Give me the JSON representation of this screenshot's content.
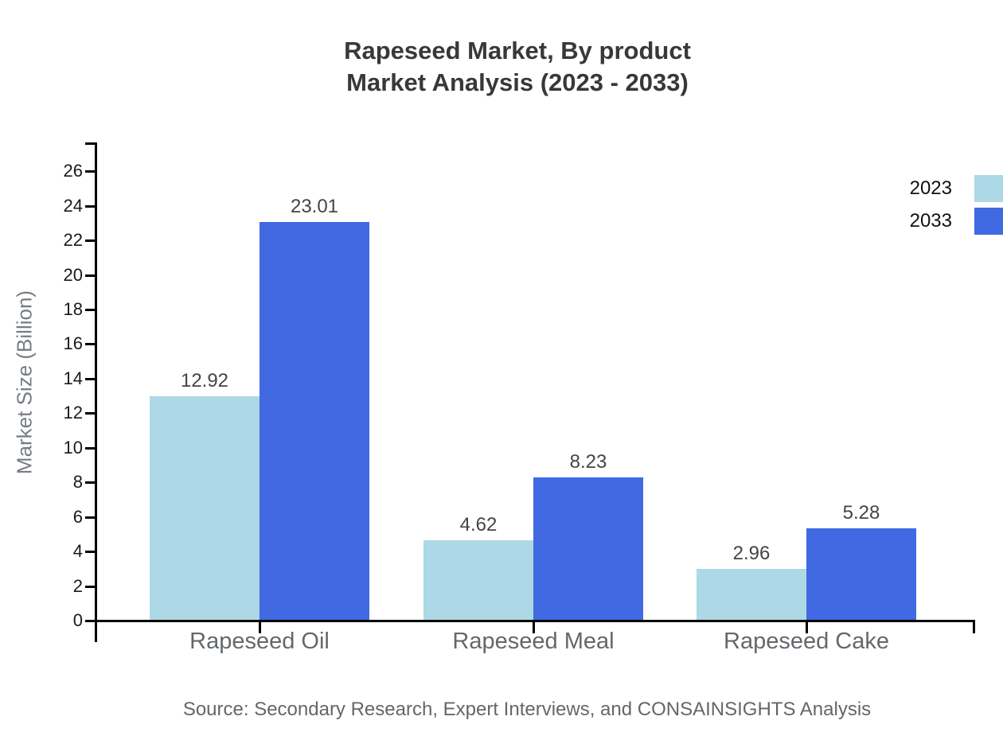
{
  "title": {
    "line1": "Rapeseed Market, By product",
    "line2": "Market Analysis (2023 - 2033)"
  },
  "source": "Source: Secondary Research, Expert Interviews, and CONSAINSIGHTS Analysis",
  "chart_data": {
    "type": "bar",
    "title": "Rapeseed Market, By product\nMarket Analysis (2023 - 2033)",
    "categories": [
      "Rapeseed Oil",
      "Rapeseed Meal",
      "Rapeseed Cake"
    ],
    "series": [
      {
        "name": "2023",
        "color": "#ADD8E6",
        "values": [
          12.92,
          4.62,
          2.96
        ]
      },
      {
        "name": "2033",
        "color": "#4169E1",
        "values": [
          23.01,
          8.23,
          5.28
        ]
      }
    ],
    "value_labels": [
      "12.92",
      "23.01",
      "4.62",
      "8.23",
      "2.96",
      "5.28"
    ],
    "xlabel": "",
    "ylabel": "Market Size (Billion)",
    "ylim": [
      0,
      27.6
    ],
    "yticks": [
      0,
      2,
      4,
      6,
      8,
      10,
      12,
      14,
      16,
      18,
      20,
      22,
      24,
      26
    ],
    "grid": false,
    "legend_position": "top-right",
    "axis_color": "#000000",
    "background": "#ffffff"
  }
}
